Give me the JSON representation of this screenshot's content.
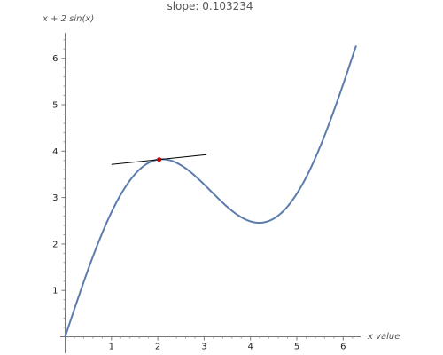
{
  "chart_data": {
    "type": "line",
    "title": "slope: 0.103234",
    "xlabel": "x value",
    "ylabel": "x + 2 sin(x)",
    "xlim": [
      0,
      6.28
    ],
    "ylim": [
      0,
      6.5
    ],
    "x_ticks": [
      1,
      2,
      3,
      4,
      5,
      6
    ],
    "y_ticks": [
      1,
      2,
      3,
      4,
      5,
      6
    ],
    "grid": false,
    "series": [
      {
        "kind": "curve",
        "expression": "x + 2 sin(x)",
        "color": "#5b7cac",
        "x_range": [
          0,
          6.28
        ]
      },
      {
        "kind": "tangent-line",
        "color": "#000000",
        "x_range": [
          1.0,
          3.05
        ],
        "slope": 0.103234,
        "point": [
          2.03,
          3.82
        ]
      }
    ],
    "point": {
      "x": 2.03,
      "y": 3.82,
      "color": "#cc0000"
    }
  }
}
